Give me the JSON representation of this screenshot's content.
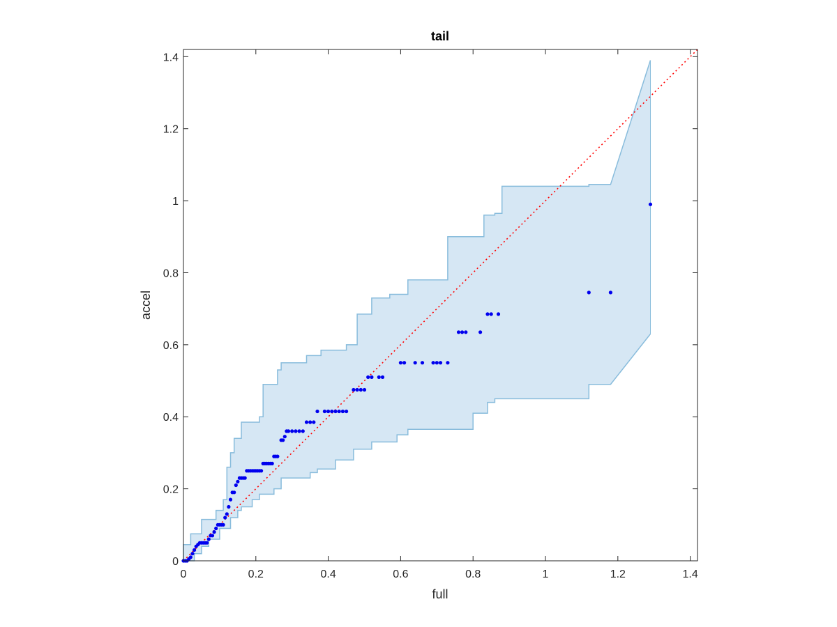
{
  "chart_data": {
    "type": "scatter",
    "title": "tail",
    "xlabel": "full",
    "ylabel": "accel",
    "xlim": [
      0,
      1.42
    ],
    "ylim": [
      0,
      1.42
    ],
    "xticks": [
      "0",
      "0.2",
      "0.4",
      "0.6",
      "0.8",
      "1",
      "1.2",
      "1.4"
    ],
    "yticks": [
      "0",
      "0.2",
      "0.4",
      "0.6",
      "0.8",
      "1",
      "1.2",
      "1.4"
    ],
    "grid": false,
    "colors": {
      "points": "#0000ee",
      "band_fill": "#d6e7f4",
      "band_edge": "#88bcdc",
      "reference_line": "#ff0000",
      "axes": "#262626"
    },
    "reference_line": {
      "x": [
        0,
        1.42
      ],
      "y": [
        0,
        1.42
      ],
      "style": "dotted"
    },
    "band": {
      "upper": {
        "x": [
          0,
          0,
          0.02,
          0.02,
          0.05,
          0.05,
          0.09,
          0.09,
          0.11,
          0.11,
          0.12,
          0.12,
          0.13,
          0.13,
          0.14,
          0.14,
          0.16,
          0.16,
          0.21,
          0.21,
          0.22,
          0.22,
          0.26,
          0.26,
          0.27,
          0.27,
          0.34,
          0.34,
          0.38,
          0.38,
          0.45,
          0.45,
          0.48,
          0.48,
          0.52,
          0.52,
          0.57,
          0.57,
          0.62,
          0.62,
          0.73,
          0.73,
          0.77,
          0.77,
          0.83,
          0.83,
          0.86,
          0.86,
          0.88,
          0.88,
          1.12,
          1.12,
          1.18,
          1.29
        ],
        "y": [
          0,
          0.045,
          0.045,
          0.075,
          0.075,
          0.115,
          0.115,
          0.14,
          0.14,
          0.17,
          0.17,
          0.26,
          0.26,
          0.3,
          0.3,
          0.34,
          0.34,
          0.385,
          0.385,
          0.4,
          0.4,
          0.49,
          0.49,
          0.53,
          0.53,
          0.55,
          0.55,
          0.57,
          0.57,
          0.585,
          0.585,
          0.6,
          0.6,
          0.685,
          0.685,
          0.73,
          0.73,
          0.74,
          0.74,
          0.78,
          0.78,
          0.9,
          0.9,
          0.9,
          0.9,
          0.96,
          0.96,
          0.965,
          0.965,
          1.04,
          1.04,
          1.045,
          1.045,
          1.39
        ]
      },
      "lower": {
        "x": [
          0,
          0.03,
          0.03,
          0.05,
          0.05,
          0.07,
          0.07,
          0.1,
          0.1,
          0.13,
          0.13,
          0.15,
          0.15,
          0.16,
          0.16,
          0.19,
          0.19,
          0.21,
          0.21,
          0.25,
          0.25,
          0.27,
          0.27,
          0.35,
          0.35,
          0.37,
          0.37,
          0.42,
          0.42,
          0.47,
          0.47,
          0.52,
          0.52,
          0.59,
          0.59,
          0.62,
          0.62,
          0.74,
          0.74,
          0.8,
          0.8,
          0.84,
          0.84,
          0.86,
          0.86,
          1.12,
          1.12,
          1.18,
          1.29
        ],
        "y": [
          0,
          0,
          0.02,
          0.02,
          0.04,
          0.04,
          0.06,
          0.06,
          0.09,
          0.09,
          0.12,
          0.12,
          0.14,
          0.14,
          0.15,
          0.15,
          0.17,
          0.17,
          0.185,
          0.185,
          0.2,
          0.2,
          0.23,
          0.23,
          0.245,
          0.245,
          0.255,
          0.255,
          0.28,
          0.28,
          0.31,
          0.31,
          0.33,
          0.33,
          0.35,
          0.35,
          0.365,
          0.365,
          0.365,
          0.365,
          0.41,
          0.41,
          0.44,
          0.44,
          0.45,
          0.45,
          0.49,
          0.49,
          0.63
        ]
      }
    },
    "series": [
      {
        "x": [
          0.0,
          0.005,
          0.01,
          0.015,
          0.02,
          0.025,
          0.03,
          0.035,
          0.04,
          0.045,
          0.05,
          0.055,
          0.06,
          0.065,
          0.07,
          0.075,
          0.08,
          0.085,
          0.09,
          0.095,
          0.1,
          0.105,
          0.11,
          0.115,
          0.12,
          0.125,
          0.13,
          0.135,
          0.14,
          0.145,
          0.15,
          0.155,
          0.16,
          0.165,
          0.17,
          0.175,
          0.18,
          0.185,
          0.19,
          0.195,
          0.2,
          0.205,
          0.21,
          0.215,
          0.22,
          0.225,
          0.23,
          0.235,
          0.24,
          0.245,
          0.25,
          0.255,
          0.26,
          0.27,
          0.275,
          0.28,
          0.285,
          0.29,
          0.3,
          0.31,
          0.32,
          0.33,
          0.34,
          0.35,
          0.36,
          0.37,
          0.39,
          0.4,
          0.41,
          0.42,
          0.43,
          0.44,
          0.45,
          0.47,
          0.48,
          0.49,
          0.5,
          0.51,
          0.52,
          0.54,
          0.55,
          0.6,
          0.61,
          0.64,
          0.66,
          0.69,
          0.7,
          0.71,
          0.73,
          0.76,
          0.77,
          0.78,
          0.82,
          0.84,
          0.85,
          0.87,
          1.12,
          1.18,
          1.29
        ],
        "y": [
          0.0,
          0.0,
          0.0,
          0.005,
          0.01,
          0.02,
          0.03,
          0.04,
          0.045,
          0.05,
          0.05,
          0.05,
          0.05,
          0.05,
          0.06,
          0.07,
          0.07,
          0.08,
          0.09,
          0.1,
          0.1,
          0.1,
          0.1,
          0.12,
          0.13,
          0.15,
          0.17,
          0.19,
          0.19,
          0.21,
          0.22,
          0.23,
          0.23,
          0.23,
          0.23,
          0.25,
          0.25,
          0.25,
          0.25,
          0.25,
          0.25,
          0.25,
          0.25,
          0.25,
          0.27,
          0.27,
          0.27,
          0.27,
          0.27,
          0.27,
          0.29,
          0.29,
          0.29,
          0.335,
          0.335,
          0.345,
          0.36,
          0.36,
          0.36,
          0.36,
          0.36,
          0.36,
          0.385,
          0.385,
          0.385,
          0.415,
          0.415,
          0.415,
          0.415,
          0.415,
          0.415,
          0.415,
          0.415,
          0.475,
          0.475,
          0.475,
          0.475,
          0.51,
          0.51,
          0.51,
          0.51,
          0.55,
          0.55,
          0.55,
          0.55,
          0.55,
          0.55,
          0.55,
          0.55,
          0.635,
          0.635,
          0.635,
          0.635,
          0.685,
          0.685,
          0.685,
          0.745,
          0.745,
          0.99
        ]
      }
    ]
  }
}
